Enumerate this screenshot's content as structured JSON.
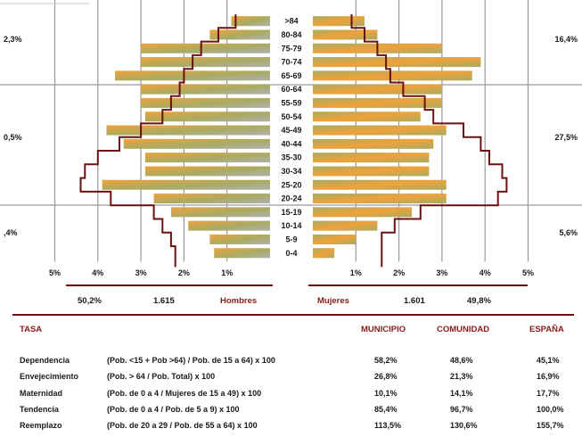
{
  "chart_data": {
    "type": "bar",
    "age_groups": [
      ">84",
      "80-84",
      "75-79",
      "70-74",
      "65-69",
      "60-64",
      "55-59",
      "50-54",
      "45-49",
      "40-44",
      "35-30",
      "30-34",
      "25-20",
      "20-24",
      "15-19",
      "10-14",
      "5-9",
      "0-4"
    ],
    "series": [
      {
        "name": "Hombres",
        "values": [
          0.9,
          1.4,
          3.0,
          3.0,
          3.6,
          3.0,
          3.0,
          2.9,
          3.8,
          3.4,
          2.9,
          2.9,
          3.9,
          2.7,
          2.3,
          1.9,
          1.4,
          1.3
        ]
      },
      {
        "name": "Mujeres",
        "values": [
          1.2,
          1.5,
          3.0,
          3.9,
          3.7,
          3.0,
          3.0,
          2.5,
          3.1,
          2.8,
          2.7,
          2.7,
          3.1,
          3.1,
          2.3,
          1.5,
          1.0,
          0.5
        ]
      }
    ],
    "outline_hombres": [
      0.8,
      1.2,
      1.6,
      1.8,
      2.0,
      2.1,
      2.3,
      2.5,
      3.0,
      3.5,
      4.0,
      4.3,
      4.4,
      3.7,
      2.7,
      2.5,
      2.3,
      2.2
    ],
    "outline_mujeres": [
      0.9,
      1.2,
      1.5,
      1.7,
      1.8,
      2.1,
      2.6,
      2.8,
      3.5,
      3.9,
      4.1,
      4.4,
      4.5,
      4.3,
      2.5,
      1.9,
      1.6,
      1.6
    ],
    "xlim": [
      0,
      5
    ],
    "tick_labels_left": [
      "5%",
      "4%",
      "3%",
      "2%",
      "1%"
    ],
    "tick_labels_right": [
      "1%",
      "2%",
      "3%",
      "4%",
      "5%"
    ],
    "side_percent_labels": {
      "left": [
        "2,3%",
        "0,5%",
        ",4%"
      ],
      "right": [
        "16,4%",
        "27,5%",
        "5,6%"
      ]
    },
    "colors": {
      "orange": "#f0a23a",
      "olive": "#a8ab62",
      "grey": "#b0b0b0",
      "outline": "#6b1111"
    }
  },
  "summary": {
    "hombres_pct": "50,2%",
    "hombres_count": "1.615",
    "hombres_label": "Hombres",
    "mujeres_label": "Mujeres",
    "mujeres_count": "1.601",
    "mujeres_pct": "49,8%"
  },
  "table": {
    "headers": {
      "tasa": "TASA",
      "municipio": "MUNICIPIO",
      "comunidad": "COMUNIDAD",
      "espana": "ESPAÑA"
    },
    "rows": [
      {
        "name": "Dependencia",
        "formula": "(Pob. <15 + Pob >64) / Pob. de 15 a 64) x 100",
        "municipio": "58,2%",
        "comunidad": "48,6%",
        "espana": "45,1%"
      },
      {
        "name": "Envejecimiento",
        "formula": "(Pob. > 64 / Pob. Total) x 100",
        "municipio": "26,8%",
        "comunidad": "21,3%",
        "espana": "16,9%"
      },
      {
        "name": "Maternidad",
        "formula": "(Pob. de 0 a 4 / Mujeres de 15 a 49) x 100",
        "municipio": "10,1%",
        "comunidad": "14,1%",
        "espana": "17,7%"
      },
      {
        "name": "Tendencia",
        "formula": "(Pob. de 0 a 4 / Pob. de 5 a 9) x 100",
        "municipio": "85,4%",
        "comunidad": "96,7%",
        "espana": "100,0%"
      },
      {
        "name": "Reemplazo",
        "formula": "(Pob. de 20 a 29 / Pob. de 55 a 64) x 100",
        "municipio": "113,5%",
        "comunidad": "130,6%",
        "espana": "155,7%"
      }
    ]
  }
}
